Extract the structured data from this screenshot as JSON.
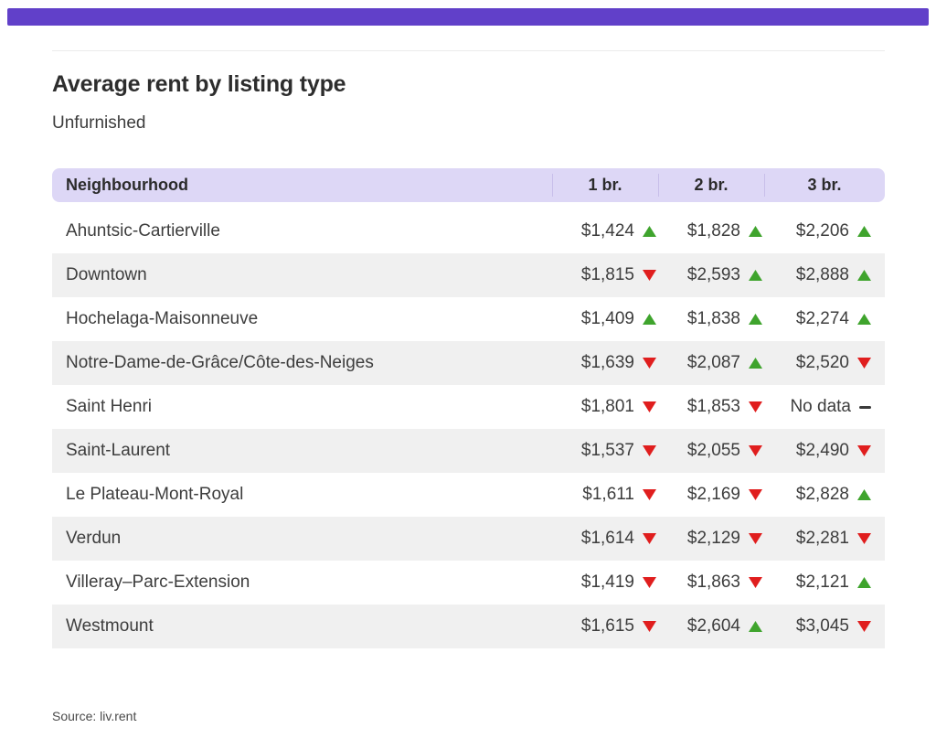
{
  "colors": {
    "accent_bar": "#6140C9",
    "header_bg": "#DDD7F6",
    "header_divider": "#C8BFEA",
    "row_alt_bg": "#F0F0F0",
    "trend_up": "#3FA42D",
    "trend_down": "#E01E1E",
    "text": "#3D3D3D"
  },
  "chart_data": {
    "type": "table",
    "title": "Average rent by listing type",
    "subtitle": "Unfurnished",
    "source": "Source: liv.rent",
    "columns": [
      "Neighbourhood",
      "1 br.",
      "2 br.",
      "3 br."
    ],
    "rows": [
      {
        "neighbourhood": "Ahuntsic-Cartierville",
        "cells": [
          {
            "display": "$1,424",
            "value": 1424,
            "trend": "up"
          },
          {
            "display": "$1,828",
            "value": 1828,
            "trend": "up"
          },
          {
            "display": "$2,206",
            "value": 2206,
            "trend": "up"
          }
        ]
      },
      {
        "neighbourhood": "Downtown",
        "cells": [
          {
            "display": "$1,815",
            "value": 1815,
            "trend": "down"
          },
          {
            "display": "$2,593",
            "value": 2593,
            "trend": "up"
          },
          {
            "display": "$2,888",
            "value": 2888,
            "trend": "up"
          }
        ]
      },
      {
        "neighbourhood": "Hochelaga-Maisonneuve",
        "cells": [
          {
            "display": "$1,409",
            "value": 1409,
            "trend": "up"
          },
          {
            "display": "$1,838",
            "value": 1838,
            "trend": "up"
          },
          {
            "display": "$2,274",
            "value": 2274,
            "trend": "up"
          }
        ]
      },
      {
        "neighbourhood": "Notre-Dame-de-Grâce/Côte-des-Neiges",
        "cells": [
          {
            "display": "$1,639",
            "value": 1639,
            "trend": "down"
          },
          {
            "display": "$2,087",
            "value": 2087,
            "trend": "up"
          },
          {
            "display": "$2,520",
            "value": 2520,
            "trend": "down"
          }
        ]
      },
      {
        "neighbourhood": "Saint Henri",
        "cells": [
          {
            "display": "$1,801",
            "value": 1801,
            "trend": "down"
          },
          {
            "display": "$1,853",
            "value": 1853,
            "trend": "down"
          },
          {
            "display": "No data",
            "value": null,
            "trend": "none"
          }
        ]
      },
      {
        "neighbourhood": "Saint-Laurent",
        "cells": [
          {
            "display": "$1,537",
            "value": 1537,
            "trend": "down"
          },
          {
            "display": "$2,055",
            "value": 2055,
            "trend": "down"
          },
          {
            "display": "$2,490",
            "value": 2490,
            "trend": "down"
          }
        ]
      },
      {
        "neighbourhood": "Le Plateau-Mont-Royal",
        "cells": [
          {
            "display": "$1,611",
            "value": 1611,
            "trend": "down"
          },
          {
            "display": "$2,169",
            "value": 2169,
            "trend": "down"
          },
          {
            "display": "$2,828",
            "value": 2828,
            "trend": "up"
          }
        ]
      },
      {
        "neighbourhood": "Verdun",
        "cells": [
          {
            "display": "$1,614",
            "value": 1614,
            "trend": "down"
          },
          {
            "display": "$2,129",
            "value": 2129,
            "trend": "down"
          },
          {
            "display": "$2,281",
            "value": 2281,
            "trend": "down"
          }
        ]
      },
      {
        "neighbourhood": "Villeray–Parc-Extension",
        "cells": [
          {
            "display": "$1,419",
            "value": 1419,
            "trend": "down"
          },
          {
            "display": "$1,863",
            "value": 1863,
            "trend": "down"
          },
          {
            "display": "$2,121",
            "value": 2121,
            "trend": "up"
          }
        ]
      },
      {
        "neighbourhood": "Westmount",
        "cells": [
          {
            "display": "$1,615",
            "value": 1615,
            "trend": "down"
          },
          {
            "display": "$2,604",
            "value": 2604,
            "trend": "up"
          },
          {
            "display": "$3,045",
            "value": 3045,
            "trend": "down"
          }
        ]
      }
    ]
  }
}
